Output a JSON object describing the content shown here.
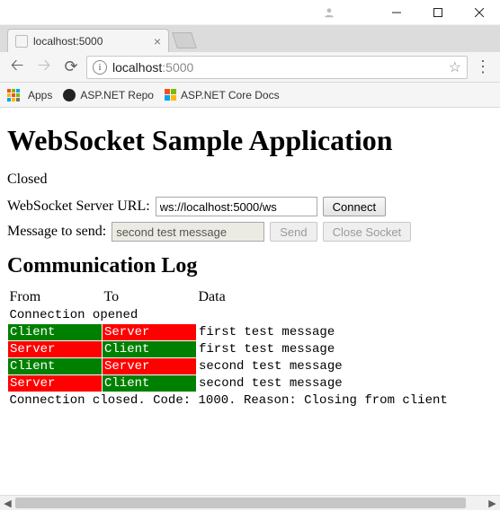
{
  "window": {
    "tab_title": "localhost:5000",
    "url_host": "localhost",
    "url_rest": ":5000"
  },
  "bookmarks": {
    "apps_label": "Apps",
    "item1": "ASP.NET Repo",
    "item2": "ASP.NET Core Docs"
  },
  "page": {
    "heading": "WebSocket Sample Application",
    "status": "Closed",
    "server_url_label": "WebSocket Server URL:",
    "server_url_value": "ws://localhost:5000/ws",
    "connect_label": "Connect",
    "message_label": "Message to send:",
    "message_value": "second test message",
    "send_label": "Send",
    "close_label": "Close Socket",
    "log_heading": "Communication Log",
    "log_headers": {
      "from": "From",
      "to": "To",
      "data": "Data"
    },
    "status_open": "Connection opened",
    "rows": [
      {
        "from": "Client",
        "to": "Server",
        "from_cls": "client",
        "to_cls": "server",
        "data": "first test message"
      },
      {
        "from": "Server",
        "to": "Client",
        "from_cls": "server",
        "to_cls": "client",
        "data": "first test message"
      },
      {
        "from": "Client",
        "to": "Server",
        "from_cls": "client",
        "to_cls": "server",
        "data": "second test message"
      },
      {
        "from": "Server",
        "to": "Client",
        "from_cls": "server",
        "to_cls": "client",
        "data": "second test message"
      }
    ],
    "status_closed": "Connection closed. Code: 1000. Reason: Closing from client"
  },
  "colors": {
    "client_bg": "#008000",
    "server_bg": "#ff0000",
    "apps_palette": [
      "#f25022",
      "#7fba00",
      "#00a4ef",
      "#ffb900",
      "#f25022",
      "#7fba00",
      "#00a4ef",
      "#ffb900",
      "#737373"
    ]
  }
}
